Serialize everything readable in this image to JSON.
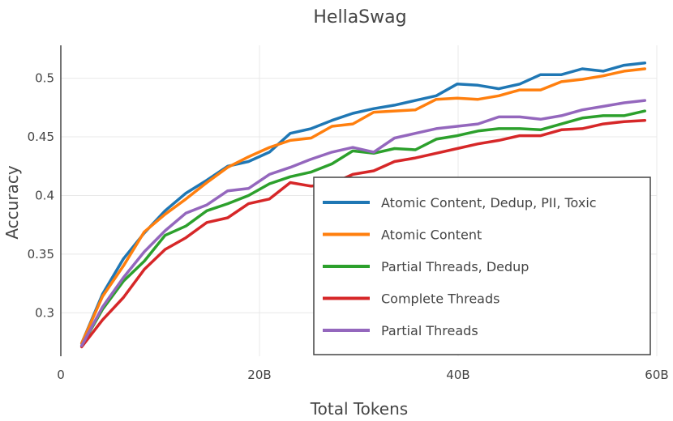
{
  "chart_data": {
    "type": "line",
    "title": "HellaSwag",
    "xlabel": "Total Tokens",
    "ylabel": "Accuracy",
    "xlim": [
      0,
      60
    ],
    "ylim": [
      0.263,
      0.528
    ],
    "x_ticks": [
      0,
      20,
      40,
      60
    ],
    "x_tick_labels": [
      "0",
      "20B",
      "40B",
      "60B"
    ],
    "y_ticks": [
      0.3,
      0.35,
      0.4,
      0.45,
      0.5
    ],
    "y_tick_labels": [
      "0.3",
      "0.35",
      "0.4",
      "0.45",
      "0.5"
    ],
    "grid": true,
    "legend_position": "lower-right",
    "x": [
      2.1,
      4.2,
      6.3,
      8.4,
      10.5,
      12.6,
      14.7,
      16.8,
      18.9,
      21.0,
      23.1,
      25.2,
      27.3,
      29.4,
      31.5,
      33.6,
      35.7,
      37.8,
      39.9,
      42.0,
      44.1,
      46.2,
      48.3,
      50.4,
      52.5,
      54.6,
      56.7,
      58.8
    ],
    "series": [
      {
        "name": "Atomic Content, Dedup, PII, Toxic",
        "color": "#1f77b4",
        "values": [
          0.274,
          0.316,
          0.346,
          0.368,
          0.387,
          0.402,
          0.413,
          0.425,
          0.429,
          0.437,
          0.453,
          0.457,
          0.464,
          0.47,
          0.474,
          0.477,
          0.481,
          0.485,
          0.495,
          0.494,
          0.491,
          0.495,
          0.503,
          0.503,
          0.508,
          0.506,
          0.511,
          0.513
        ]
      },
      {
        "name": "Atomic Content",
        "color": "#ff7f0e",
        "values": [
          0.274,
          0.314,
          0.34,
          0.369,
          0.384,
          0.397,
          0.411,
          0.424,
          0.433,
          0.441,
          0.447,
          0.449,
          0.459,
          0.461,
          0.471,
          0.472,
          0.473,
          0.482,
          0.483,
          0.482,
          0.485,
          0.49,
          0.49,
          0.497,
          0.499,
          0.502,
          0.506,
          0.508
        ]
      },
      {
        "name": "Partial Threads, Dedup",
        "color": "#2ca02c",
        "values": [
          0.272,
          0.303,
          0.327,
          0.344,
          0.366,
          0.374,
          0.387,
          0.393,
          0.4,
          0.41,
          0.416,
          0.42,
          0.427,
          0.438,
          0.436,
          0.44,
          0.439,
          0.448,
          0.451,
          0.455,
          0.457,
          0.457,
          0.456,
          0.461,
          0.466,
          0.468,
          0.468,
          0.472
        ]
      },
      {
        "name": "Complete Threads",
        "color": "#d62728",
        "values": [
          0.271,
          0.294,
          0.313,
          0.337,
          0.354,
          0.364,
          0.377,
          0.381,
          0.393,
          0.397,
          0.411,
          0.408,
          0.41,
          0.418,
          0.421,
          0.429,
          0.432,
          0.436,
          0.44,
          0.444,
          0.447,
          0.451,
          0.451,
          0.456,
          0.457,
          0.461,
          0.463,
          0.464
        ]
      },
      {
        "name": "Partial Threads",
        "color": "#9467bd",
        "values": [
          0.272,
          0.305,
          0.33,
          0.352,
          0.37,
          0.385,
          0.392,
          0.404,
          0.406,
          0.418,
          0.424,
          0.431,
          0.437,
          0.441,
          0.437,
          0.449,
          0.453,
          0.457,
          0.459,
          0.461,
          0.467,
          0.467,
          0.465,
          0.468,
          0.473,
          0.476,
          0.479,
          0.481
        ]
      }
    ]
  }
}
